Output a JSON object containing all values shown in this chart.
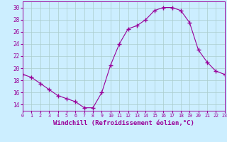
{
  "hours": [
    0,
    1,
    2,
    3,
    4,
    5,
    6,
    7,
    8,
    9,
    10,
    11,
    12,
    13,
    14,
    15,
    16,
    17,
    18,
    19,
    20,
    21,
    22,
    23
  ],
  "values": [
    19,
    18.5,
    17.5,
    16.5,
    15.5,
    15,
    14.5,
    13.5,
    13.5,
    16,
    20.5,
    24,
    26.5,
    27,
    28,
    29.5,
    30,
    30,
    29.5,
    27.5,
    23,
    21,
    19.5,
    19
  ],
  "line_color": "#990099",
  "marker": "+",
  "marker_size": 4,
  "bg_color": "#cceeff",
  "grid_color": "#aacccc",
  "xlabel": "Windchill (Refroidissement éolien,°C)",
  "ylim": [
    13,
    31
  ],
  "yticks": [
    14,
    16,
    18,
    20,
    22,
    24,
    26,
    28,
    30
  ],
  "xlim": [
    0,
    23
  ],
  "tick_color": "#990099",
  "spine_color": "#990099",
  "xlabel_color": "#990099",
  "xlabel_fontsize": 6.5
}
